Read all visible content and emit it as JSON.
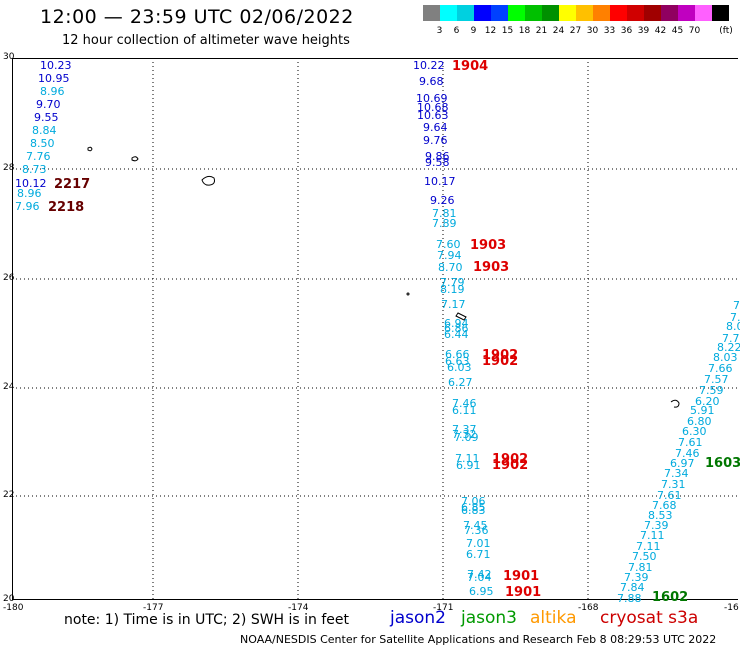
{
  "header": {
    "title": "12:00 — 23:59 UTC 02/06/2022",
    "subtitle": "12 hour collection of altimeter wave heights"
  },
  "scale": {
    "unit": "(ft)",
    "colors": [
      "#808080",
      "#00ffff",
      "#00d0e0",
      "#0000ff",
      "#0040ff",
      "#00ff00",
      "#00c000",
      "#009000",
      "#ffff00",
      "#ffc000",
      "#ff8000",
      "#ff0000",
      "#d00000",
      "#a00000",
      "#900060",
      "#c000c0",
      "#ff60ff",
      "#000000"
    ],
    "labels": [
      "3",
      "6",
      "9",
      "12",
      "15",
      "18",
      "21",
      "24",
      "27",
      "30",
      "33",
      "36",
      "39",
      "42",
      "45",
      "70"
    ]
  },
  "axes": {
    "lon_labels": [
      "-180",
      "-177",
      "-174",
      "-171",
      "-168",
      "-16"
    ],
    "lat_labels": [
      "30",
      "28",
      "26",
      "24",
      "22",
      "20"
    ]
  },
  "footer": {
    "note": "note: 1) Time is in UTC; 2) SWH is in feet",
    "legend": [
      {
        "name": "jason2",
        "color": "#0000cc"
      },
      {
        "name": "jason3",
        "color": "#009900"
      },
      {
        "name": "altika",
        "color": "#ff9900"
      },
      {
        "name": "cryosat s3a",
        "color": "#cc0000"
      }
    ],
    "credit": "NOAA/NESDIS Center for Satellite Applications and Research   Feb  8 08:29:53 UTC 2022"
  },
  "points": [
    {
      "v": "10.23",
      "c": "#0000cc"
    },
    {
      "v": "10.95",
      "c": "#0000cc"
    },
    {
      "v": "8.96",
      "c": "#00aadd"
    },
    {
      "v": "9.70",
      "c": "#0000cc"
    },
    {
      "v": "9.55",
      "c": "#0000cc"
    },
    {
      "v": "8.84",
      "c": "#00aadd"
    },
    {
      "v": "8.50",
      "c": "#00aadd"
    },
    {
      "v": "7.76",
      "c": "#00aadd"
    },
    {
      "v": "8.73",
      "c": "#00aadd"
    },
    {
      "v": "10.12",
      "c": "#0000cc"
    },
    {
      "v": "8.96",
      "c": "#00aadd"
    },
    {
      "v": "7.96",
      "c": "#00aadd"
    },
    {
      "v": "10.22",
      "c": "#0000cc"
    },
    {
      "v": "9.68",
      "c": "#0000cc"
    },
    {
      "v": "10.69",
      "c": "#0000cc"
    },
    {
      "v": "10.68",
      "c": "#0000cc"
    },
    {
      "v": "10.63",
      "c": "#0000cc"
    },
    {
      "v": "9.64",
      "c": "#0000cc"
    },
    {
      "v": "9.76",
      "c": "#0000cc"
    },
    {
      "v": "9.86",
      "c": "#0000cc"
    },
    {
      "v": "9.58",
      "c": "#0000cc"
    },
    {
      "v": "10.17",
      "c": "#0000cc"
    },
    {
      "v": "9.26",
      "c": "#0000cc"
    },
    {
      "v": "7.81",
      "c": "#00aadd"
    },
    {
      "v": "7.89",
      "c": "#00aadd"
    },
    {
      "v": "7.60",
      "c": "#00aadd"
    },
    {
      "v": "7.94",
      "c": "#00aadd"
    },
    {
      "v": "8.70",
      "c": "#00aadd"
    },
    {
      "v": "7.79",
      "c": "#00aadd"
    },
    {
      "v": "8.19",
      "c": "#00aadd"
    },
    {
      "v": "7.17",
      "c": "#00aadd"
    },
    {
      "v": "6.94",
      "c": "#00aadd"
    },
    {
      "v": "6.86",
      "c": "#00aadd"
    },
    {
      "v": "6.44",
      "c": "#00aadd"
    },
    {
      "v": "6.66",
      "c": "#00aadd"
    },
    {
      "v": "6.63",
      "c": "#00aadd"
    },
    {
      "v": "6.03",
      "c": "#00aadd"
    },
    {
      "v": "6.27",
      "c": "#00aadd"
    },
    {
      "v": "7.46",
      "c": "#00aadd"
    },
    {
      "v": "6.11",
      "c": "#00aadd"
    },
    {
      "v": "7.37",
      "c": "#00aadd"
    },
    {
      "v": "7.32",
      "c": "#00aadd"
    },
    {
      "v": "7.09",
      "c": "#00aadd"
    },
    {
      "v": "7.11",
      "c": "#00aadd"
    },
    {
      "v": "6.91",
      "c": "#00aadd"
    },
    {
      "v": "7.06",
      "c": "#00aadd"
    },
    {
      "v": "6.85",
      "c": "#00aadd"
    },
    {
      "v": "6.83",
      "c": "#00aadd"
    },
    {
      "v": "7.45",
      "c": "#00aadd"
    },
    {
      "v": "7.36",
      "c": "#00aadd"
    },
    {
      "v": "7.01",
      "c": "#00aadd"
    },
    {
      "v": "6.71",
      "c": "#00aadd"
    },
    {
      "v": "7.42",
      "c": "#00aadd"
    },
    {
      "v": "7.04",
      "c": "#00aadd"
    },
    {
      "v": "6.95",
      "c": "#00aadd"
    },
    {
      "v": "7.",
      "c": "#00aadd"
    },
    {
      "v": "7.",
      "c": "#00aadd"
    },
    {
      "v": "8.0",
      "c": "#00aadd"
    },
    {
      "v": "7.7",
      "c": "#00aadd"
    },
    {
      "v": "8.22",
      "c": "#00aadd"
    },
    {
      "v": "8.03",
      "c": "#00aadd"
    },
    {
      "v": "7.66",
      "c": "#00aadd"
    },
    {
      "v": "7.57",
      "c": "#00aadd"
    },
    {
      "v": "7.59",
      "c": "#00aadd"
    },
    {
      "v": "6.20",
      "c": "#00aadd"
    },
    {
      "v": "5.91",
      "c": "#00aadd"
    },
    {
      "v": "6.80",
      "c": "#00aadd"
    },
    {
      "v": "6.30",
      "c": "#00aadd"
    },
    {
      "v": "7.61",
      "c": "#00aadd"
    },
    {
      "v": "7.46",
      "c": "#00aadd"
    },
    {
      "v": "6.97",
      "c": "#00aadd"
    },
    {
      "v": "7.34",
      "c": "#00aadd"
    },
    {
      "v": "7.31",
      "c": "#00aadd"
    },
    {
      "v": "7.61",
      "c": "#00aadd"
    },
    {
      "v": "7.68",
      "c": "#00aadd"
    },
    {
      "v": "8.53",
      "c": "#00aadd"
    },
    {
      "v": "7.39",
      "c": "#00aadd"
    },
    {
      "v": "7.11",
      "c": "#00aadd"
    },
    {
      "v": "7.11",
      "c": "#00aadd"
    },
    {
      "v": "7.50",
      "c": "#00aadd"
    },
    {
      "v": "7.81",
      "c": "#00aadd"
    },
    {
      "v": "7.39",
      "c": "#00aadd"
    },
    {
      "v": "7.84",
      "c": "#00aadd"
    },
    {
      "v": "7.88",
      "c": "#00aadd"
    }
  ],
  "time_tags": [
    {
      "v": "2217",
      "c": "#660000"
    },
    {
      "v": "2218",
      "c": "#660000"
    },
    {
      "v": "1904",
      "c": "#dd0000"
    },
    {
      "v": "1903",
      "c": "#dd0000"
    },
    {
      "v": "1903",
      "c": "#dd0000"
    },
    {
      "v": "1902",
      "c": "#dd0000"
    },
    {
      "v": "1902",
      "c": "#dd0000"
    },
    {
      "v": "1902",
      "c": "#dd0000"
    },
    {
      "v": "1902",
      "c": "#dd0000"
    },
    {
      "v": "1901",
      "c": "#dd0000"
    },
    {
      "v": "1901",
      "c": "#dd0000"
    },
    {
      "v": "1603",
      "c": "#007700"
    },
    {
      "v": "1602",
      "c": "#007700"
    }
  ]
}
